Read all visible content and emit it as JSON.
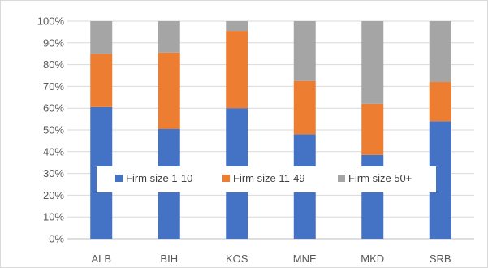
{
  "chart_data": {
    "type": "bar",
    "stacked": true,
    "categories": [
      "ALB",
      "BIH",
      "KOS",
      "MNE",
      "MKD",
      "SRB"
    ],
    "series": [
      {
        "name": "Firm size 1-10",
        "color": "#4472C4",
        "values": [
          60.5,
          50.5,
          60,
          48,
          38.5,
          54
        ]
      },
      {
        "name": "Firm size 11-49",
        "color": "#ED7D31",
        "values": [
          24.5,
          35,
          35.5,
          24.5,
          23.5,
          18
        ]
      },
      {
        "name": "Firm size 50+",
        "color": "#A5A5A5",
        "values": [
          15,
          14.5,
          4.5,
          27.5,
          38,
          28
        ]
      }
    ],
    "ylim": [
      0,
      100
    ],
    "y_ticks": [
      "0%",
      "10%",
      "20%",
      "30%",
      "40%",
      "50%",
      "60%",
      "70%",
      "80%",
      "90%",
      "100%"
    ],
    "grid": true,
    "legend_position": "inside-center"
  }
}
